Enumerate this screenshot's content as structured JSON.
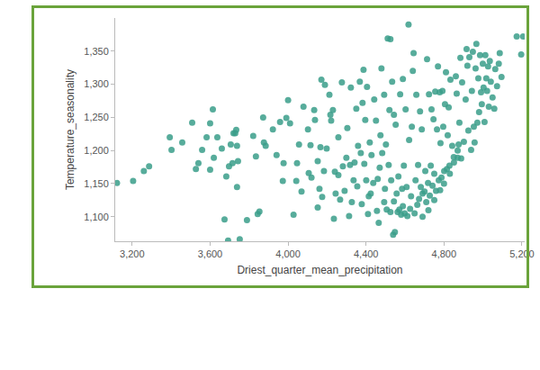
{
  "chart_data": {
    "type": "scatter",
    "x_label": "Driest_quarter_mean_precipitation",
    "y_label": "Temperature_seasonality",
    "color": "#3a9e8a",
    "marker": "circle",
    "grid": false,
    "xlim": [
      3113,
      5214
    ],
    "ylim": [
      1063,
      1400
    ],
    "xticks": [
      {
        "value": 3200,
        "label": "3,200"
      },
      {
        "value": 3600,
        "label": "3,600"
      },
      {
        "value": 4000,
        "label": "4,000"
      },
      {
        "value": 4400,
        "label": "4,400"
      },
      {
        "value": 4800,
        "label": "4,800"
      },
      {
        "value": 5200,
        "label": "5,200"
      }
    ],
    "yticks": [
      {
        "value": 1100,
        "label": "1,100"
      },
      {
        "value": 1150,
        "label": "1,150"
      },
      {
        "value": 1200,
        "label": "1,200"
      },
      {
        "value": 1250,
        "label": "1,250"
      },
      {
        "value": 1300,
        "label": "1,300"
      },
      {
        "value": 1350,
        "label": "1,350"
      }
    ],
    "x": [
      3122,
      3205,
      3260,
      3287,
      3393,
      3402,
      3457,
      3508,
      3527,
      3540,
      3559,
      3582,
      3600,
      3600,
      3614,
      3619,
      3637,
      3660,
      3674,
      3683,
      3692,
      3697,
      3706,
      3715,
      3720,
      3729,
      3734,
      3738,
      3738,
      3743,
      3752,
      3789,
      3821,
      3835,
      3844,
      3853,
      3872,
      3876,
      3885,
      3922,
      3941,
      3959,
      3973,
      3977,
      3991,
      4000,
      4010,
      4028,
      4042,
      4046,
      4056,
      4069,
      4079,
      4102,
      4106,
      4115,
      4120,
      4134,
      4138,
      4152,
      4152,
      4161,
      4166,
      4171,
      4175,
      4184,
      4189,
      4198,
      4212,
      4217,
      4221,
      4230,
      4235,
      4240,
      4244,
      4258,
      4258,
      4267,
      4276,
      4281,
      4290,
      4299,
      4304,
      4313,
      4318,
      4322,
      4327,
      4336,
      4341,
      4350,
      4355,
      4359,
      4368,
      4373,
      4378,
      4382,
      4387,
      4391,
      4396,
      4401,
      4405,
      4410,
      4414,
      4419,
      4424,
      4428,
      4437,
      4442,
      4451,
      4456,
      4460,
      4465,
      4470,
      4474,
      4479,
      4483,
      4493,
      4493,
      4497,
      4502,
      4506,
      4511,
      4516,
      4520,
      4525,
      4525,
      4529,
      4534,
      4539,
      4543,
      4543,
      4548,
      4552,
      4557,
      4562,
      4566,
      4571,
      4575,
      4580,
      4585,
      4589,
      4589,
      4594,
      4598,
      4603,
      4608,
      4612,
      4618,
      4621,
      4626,
      4631,
      4635,
      4640,
      4644,
      4649,
      4654,
      4658,
      4663,
      4667,
      4672,
      4677,
      4681,
      4686,
      4690,
      4690,
      4700,
      4704,
      4709,
      4713,
      4718,
      4720,
      4723,
      4727,
      4732,
      4736,
      4741,
      4746,
      4750,
      4750,
      4755,
      4759,
      4764,
      4769,
      4773,
      4778,
      4780,
      4782,
      4787,
      4792,
      4796,
      4800,
      4801,
      4805,
      4810,
      4815,
      4819,
      4824,
      4828,
      4830,
      4833,
      4842,
      4850,
      4851,
      4861,
      4865,
      4870,
      4870,
      4875,
      4879,
      4884,
      4888,
      4893,
      4902,
      4911,
      4916,
      4920,
      4925,
      4930,
      4939,
      4943,
      4948,
      4953,
      4957,
      4962,
      4966,
      4971,
      4976,
      4980,
      4985,
      4990,
      4994,
      4999,
      5003,
      5008,
      5012,
      5017,
      5021,
      5026,
      5030,
      5035,
      5040,
      5049,
      5058,
      5063,
      5072,
      5081,
      5086,
      5095,
      5173,
      5196,
      5206
    ],
    "y": [
      1151,
      1154,
      1169,
      1176,
      1220,
      1201,
      1212,
      1242,
      1172,
      1181,
      1201,
      1220,
      1241,
      1171,
      1262,
      1189,
      1220,
      1203,
      1096,
      1161,
      1064,
      1176,
      1209,
      1181,
      1226,
      1226,
      1231,
      1207,
      1145,
      1184,
      1066,
      1095,
      1222,
      1191,
      1104,
      1108,
      1250,
      1212,
      1207,
      1232,
      1193,
      1243,
      1154,
      1181,
      1249,
      1276,
      1241,
      1103,
      1154,
      1181,
      1209,
      1138,
      1266,
      1232,
      1166,
      1208,
      1159,
      1261,
      1246,
      1114,
      1184,
      1142,
      1205,
      1307,
      1130,
      1169,
      1299,
      1203,
      1284,
      1254,
      1245,
      1261,
      1097,
      1168,
      1135,
      1163,
      1220,
      1126,
      1303,
      1176,
      1139,
      1189,
      1234,
      1101,
      1178,
      1295,
      1122,
      1155,
      1182,
      1263,
      1146,
      1207,
      1304,
      1196,
      1119,
      1272,
      1322,
      1180,
      1246,
      1155,
      1296,
      1104,
      1131,
      1212,
      1135,
      1193,
      1151,
      1277,
      1245,
      1109,
      1157,
      1091,
      1174,
      1223,
      1324,
      1196,
      1122,
      1284,
      1142,
      1209,
      1111,
      1369,
      1178,
      1261,
      1368,
      1107,
      1155,
      1304,
      1073,
      1123,
      1254,
      1077,
      1239,
      1135,
      1107,
      1161,
      1111,
      1285,
      1103,
      1142,
      1116,
      1308,
      1177,
      1105,
      1262,
      1145,
      1101,
      1390,
      1216,
      1112,
      1131,
      1236,
      1320,
      1347,
      1105,
      1155,
      1284,
      1118,
      1178,
      1127,
      1259,
      1145,
      1232,
      1135,
      1100,
      1138,
      1169,
      1122,
      1338,
      1151,
      1110,
      1285,
      1132,
      1177,
      1262,
      1147,
      1247,
      1165,
      1125,
      1289,
      1139,
      1232,
      1327,
      1155,
      1288,
      1140,
      1211,
      1159,
      1290,
      1236,
      1150,
      1169,
      1270,
      1318,
      1172,
      1223,
      1265,
      1177,
      1165,
      1307,
      1207,
      1190,
      1182,
      1312,
      1286,
      1189,
      1200,
      1209,
      1242,
      1340,
      1188,
      1303,
      1213,
      1277,
      1353,
      1328,
      1230,
      1341,
      1201,
      1290,
      1349,
      1236,
      1212,
      1324,
      1361,
      1242,
      1309,
      1258,
      1344,
      1288,
      1270,
      1331,
      1295,
      1243,
      1344,
      1309,
      1290,
      1327,
      1266,
      1335,
      1304,
      1280,
      1263,
      1323,
      1297,
      1331,
      1347,
      1311,
      1372,
      1345,
      1372
    ]
  }
}
